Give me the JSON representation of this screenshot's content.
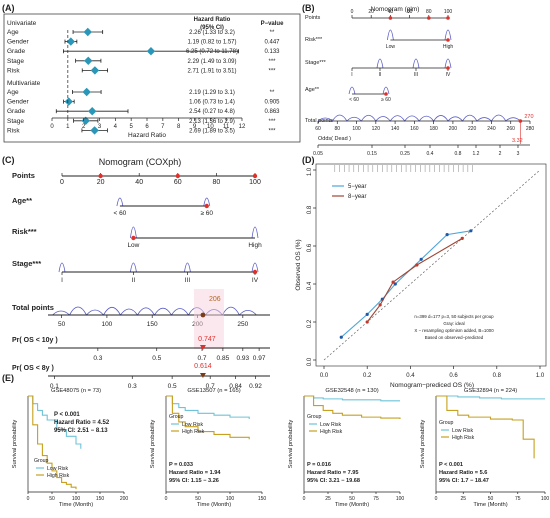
{
  "panel_labels": {
    "A": "(A)",
    "B": "(B)",
    "C": "(C)",
    "D": "(D)",
    "E": "(E)"
  },
  "chart_data": [
    {
      "panel": "A",
      "type": "forest",
      "header_hr": "Hazard Ratio",
      "header_ci": "(95% CI)",
      "header_p": "P−value",
      "xlabel": "Hazard Ratio",
      "xticks": [
        0,
        1,
        2,
        3,
        4,
        5,
        6,
        7,
        8,
        9,
        10,
        11,
        12
      ],
      "xlim": [
        0,
        12
      ],
      "groups": [
        {
          "title": "Univariate",
          "rows": [
            {
              "var": "Age",
              "hr": 2.26,
              "lo": 1.33,
              "hi": 3.2,
              "ci_text": "2.26 (1.33 to 3.2)",
              "p": "**"
            },
            {
              "var": "Gender",
              "hr": 1.19,
              "lo": 0.82,
              "hi": 1.57,
              "ci_text": "1.19 (0.82 to 1.57)",
              "p": "0.447"
            },
            {
              "var": "Grade",
              "hr": 6.25,
              "lo": 0.72,
              "hi": 11.78,
              "ci_text": "6.25 (0.72 to 11.78)",
              "p": "0.133"
            },
            {
              "var": "Stage",
              "hr": 2.29,
              "lo": 1.49,
              "hi": 3.09,
              "ci_text": "2.29 (1.49 to 3.09)",
              "p": "***"
            },
            {
              "var": "Risk",
              "hr": 2.71,
              "lo": 1.91,
              "hi": 3.51,
              "ci_text": "2.71 (1.91 to 3.51)",
              "p": "***"
            }
          ]
        },
        {
          "title": "Multivariate",
          "rows": [
            {
              "var": "Age",
              "hr": 2.19,
              "lo": 1.29,
              "hi": 3.1,
              "ci_text": "2.19 (1.29 to 3.1)",
              "p": "**"
            },
            {
              "var": "Gender",
              "hr": 1.06,
              "lo": 0.73,
              "hi": 1.4,
              "ci_text": "1.06 (0.73 to 1.4)",
              "p": "0.905"
            },
            {
              "var": "Grade",
              "hr": 2.54,
              "lo": 0.27,
              "hi": 4.8,
              "ci_text": "2.54 (0.27 to 4.8)",
              "p": "0.863"
            },
            {
              "var": "Stage",
              "hr": 2.13,
              "lo": 1.36,
              "hi": 2.9,
              "ci_text": "2.13 (1.36 to 2.9)",
              "p": "***"
            },
            {
              "var": "Risk",
              "hr": 2.69,
              "lo": 1.89,
              "hi": 3.5,
              "ci_text": "2.69 (1.89 to 3.5)",
              "p": "***"
            }
          ]
        }
      ]
    },
    {
      "panel": "B",
      "type": "nomogram",
      "title": "Nomogram (glm)",
      "points_ticks": [
        0,
        20,
        40,
        60,
        80,
        100
      ],
      "rows": [
        {
          "label": "Risk***",
          "ticks": [
            "Low",
            "High"
          ]
        },
        {
          "label": "Stage***",
          "ticks": [
            "I",
            "II",
            "III",
            "IV"
          ]
        },
        {
          "label": "Age**",
          "ticks": [
            "< 60",
            "≥ 60"
          ]
        }
      ],
      "total_label": "Total points",
      "total_ticks": [
        60,
        80,
        100,
        120,
        140,
        160,
        180,
        200,
        220,
        240,
        260,
        280
      ],
      "total_highlight": "270",
      "odds_label": "Odds( Dead )",
      "odds_ticks": [
        "0.05",
        "0.15",
        "0.25",
        "0.4",
        "0.8",
        "1.2",
        "2",
        "3"
      ],
      "odds_highlight": "3.32"
    },
    {
      "panel": "C",
      "type": "nomogram",
      "title": "Nomogram (COXph)",
      "points_label": "Points",
      "points_ticks": [
        0,
        20,
        40,
        60,
        80,
        100
      ],
      "rows": [
        {
          "label": "Age**",
          "ticks": [
            "< 60",
            "≥ 60"
          ]
        },
        {
          "label": "Risk***",
          "ticks": [
            "Low",
            "High"
          ]
        },
        {
          "label": "Stage***",
          "ticks": [
            "I",
            "II",
            "III",
            "IV"
          ]
        }
      ],
      "total_label": "Total points",
      "total_ticks": [
        50,
        100,
        150,
        200,
        250
      ],
      "total_highlight": "206",
      "pr1_label": "Pr( OS < 10y )",
      "pr1_ticks": [
        "0.3",
        "0.5",
        "0.7",
        "0.85",
        "0.93",
        "0.97"
      ],
      "pr1_highlight": "0.747",
      "pr2_label": "Pr( OS < 8y )",
      "pr2_ticks": [
        "0.1",
        "0.3",
        "0.5",
        "0.7",
        "0.84",
        "0.92"
      ],
      "pr2_highlight": "0.614"
    },
    {
      "panel": "D",
      "type": "line",
      "xlabel": "Nomogram−prediced OS (%)",
      "ylabel": "Observed OS (%)",
      "xlim": [
        0,
        1
      ],
      "ylim": [
        0,
        1
      ],
      "xticks": [
        "0.0",
        "0.2",
        "0.4",
        "0.6",
        "0.8",
        "1.0"
      ],
      "yticks": [
        "0.0",
        "0.2",
        "0.4",
        "0.6",
        "0.8",
        "1.0"
      ],
      "legend": [
        "5−year",
        "8−year"
      ],
      "note": [
        "n=399 d=177 p=3, 50 subjects per group",
        "Gray: ideal",
        "X − resampling optimism added, B=1000",
        "Based on observed−predicted"
      ],
      "series": [
        {
          "name": "5−year",
          "x": [
            0.08,
            0.2,
            0.27,
            0.33,
            0.45,
            0.57,
            0.68
          ],
          "y": [
            0.12,
            0.24,
            0.32,
            0.4,
            0.53,
            0.66,
            0.68
          ]
        },
        {
          "name": "8−year",
          "x": [
            0.2,
            0.26,
            0.32,
            0.43,
            0.64
          ],
          "y": [
            0.2,
            0.29,
            0.41,
            0.5,
            0.64
          ]
        }
      ]
    },
    {
      "panel": "E",
      "type": "km",
      "ylabel": "Survival probability",
      "xlabel": "Time (Month)",
      "group_label": "Group",
      "legend": [
        "Low Risk",
        "High Risk"
      ],
      "plots": [
        {
          "title": "GSE48075 (n = 73)",
          "xticks": [
            0,
            50,
            100,
            150,
            200
          ],
          "xmax": 200,
          "stats": [
            "P < 0.001",
            "Hazard Ratio = 4.52",
            "95% CI: 2.51 − 8.13"
          ],
          "low": {
            "x": [
              0,
              10,
              20,
              30,
              40,
              60,
              80,
              100,
              110
            ],
            "y": [
              1,
              0.92,
              0.85,
              0.8,
              0.75,
              0.65,
              0.58,
              0.5,
              0.45
            ]
          },
          "high": {
            "x": [
              0,
              10,
              20,
              30,
              40,
              50,
              60,
              70,
              80,
              90,
              100
            ],
            "y": [
              1,
              0.7,
              0.5,
              0.38,
              0.3,
              0.22,
              0.15,
              0.1,
              0.08,
              0.05,
              0.03
            ]
          }
        },
        {
          "title": "GSE13507 (n = 165)",
          "xticks": [
            0,
            50,
            100,
            150
          ],
          "xmax": 150,
          "stats": [
            "P = 0.033",
            "Hazard Ratio = 1.94",
            "95% CI: 1.15 − 3.26"
          ],
          "low": {
            "x": [
              0,
              10,
              20,
              30,
              50,
              75,
              100,
              130
            ],
            "y": [
              1,
              0.92,
              0.88,
              0.85,
              0.82,
              0.8,
              0.78,
              0.76
            ]
          },
          "high": {
            "x": [
              0,
              10,
              20,
              30,
              50,
              75,
              100,
              130
            ],
            "y": [
              1,
              0.82,
              0.73,
              0.68,
              0.63,
              0.6,
              0.57,
              0.55
            ]
          }
        },
        {
          "title": "GSE32548 (n = 130)",
          "xticks": [
            0,
            25,
            50,
            75,
            100
          ],
          "xmax": 100,
          "stats": [
            "P = 0.016",
            "Hazard Ratio = 7.95",
            "95% CI: 3.21 − 19.68"
          ],
          "low": {
            "x": [
              0,
              10,
              20,
              40,
              60,
              80,
              100
            ],
            "y": [
              1,
              0.98,
              0.97,
              0.96,
              0.96,
              0.95,
              0.95
            ]
          },
          "high": {
            "x": [
              0,
              10,
              20,
              30,
              40,
              60,
              80,
              100
            ],
            "y": [
              1,
              0.9,
              0.85,
              0.82,
              0.8,
              0.78,
              0.77,
              0.76
            ]
          }
        },
        {
          "title": "GSE32894 (n = 224)",
          "xticks": [
            0,
            25,
            50,
            75,
            100
          ],
          "xmax": 100,
          "stats": [
            "P < 0.001",
            "Hazard Ratio = 5.6",
            "95% CI: 1.7 − 18.47"
          ],
          "low": {
            "x": [
              0,
              20,
              40,
              60,
              80,
              100
            ],
            "y": [
              1,
              0.99,
              0.98,
              0.97,
              0.97,
              0.97
            ]
          },
          "high": {
            "x": [
              0,
              10,
              20,
              30,
              50,
              70,
              80,
              90
            ],
            "y": [
              1,
              0.85,
              0.8,
              0.78,
              0.76,
              0.75,
              0.55,
              0.35
            ]
          }
        }
      ]
    }
  ],
  "colors": {
    "forest": "#2a97b8",
    "curve": "#5b5fc7",
    "red": "#e0302c",
    "lowrisk": "#6fc3d9",
    "highrisk": "#c6a01e",
    "cal5": "#4da6d8",
    "cal8": "#a04632"
  }
}
